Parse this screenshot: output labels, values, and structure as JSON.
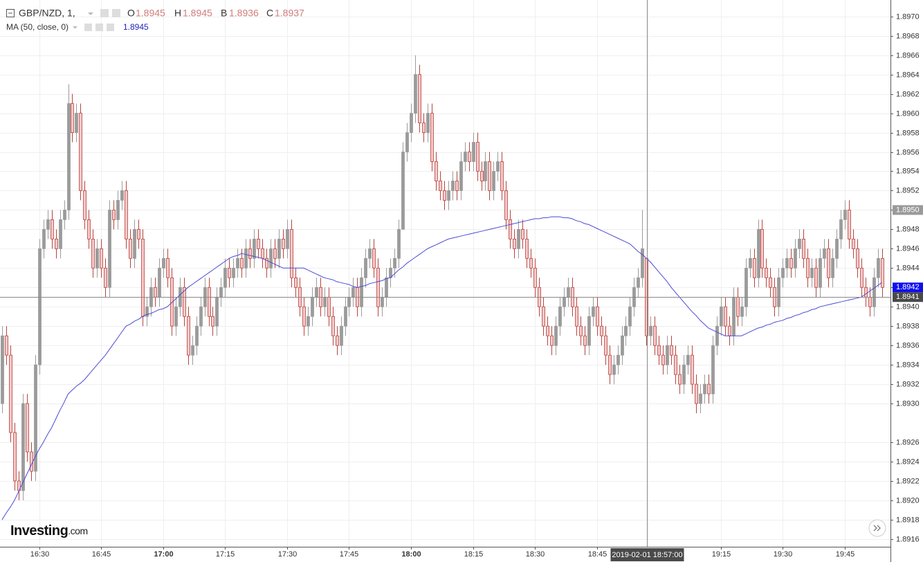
{
  "chart_data": {
    "type": "candlestick",
    "symbol": "GBP/NZD, 1,",
    "ohlc_labels": [
      "O",
      "H",
      "B",
      "C"
    ],
    "logo": "Investing",
    "logo_suffix": ".com",
    "up_color": "#9b9b9b",
    "down_color": "#f6c9c9",
    "down_edge": "#b5433d",
    "grid": true,
    "ylim": [
      1.89152,
      1.89717
    ],
    "yticks": [
      1.8916,
      1.8918,
      {
        "value": 1.892,
        "label": "1.8920"
      },
      1.8922,
      1.8924,
      1.8926,
      {
        "value": 1.893,
        "label": "1.8930"
      },
      1.8932,
      1.8934,
      1.8936,
      1.8938,
      {
        "value": 1.894,
        "label": "1.8940"
      },
      1.8942,
      1.8944,
      1.8946,
      1.8948,
      {
        "value": 1.895,
        "label": "1.8950"
      },
      1.8952,
      1.8954,
      1.8956,
      1.8958,
      {
        "value": 1.896,
        "label": "1.8960"
      },
      1.8962,
      1.8964,
      1.8966,
      1.8968,
      {
        "value": 1.897,
        "label": "1.8970"
      }
    ],
    "price_markers": [
      {
        "value": 1.895,
        "label": "1.8950",
        "color": "#9a9a9a"
      },
      {
        "value": 1.8942,
        "label": "1.8942",
        "color": "#1010ee"
      },
      {
        "value": 1.8941,
        "label": "1.8941",
        "color": "#4a4a4a"
      }
    ],
    "crosshair": {
      "label": "2019-02-01 18:57:00",
      "price": 1.8941
    },
    "categories": [
      null,
      null,
      null,
      null,
      null,
      null,
      null,
      null,
      null,
      "16:30",
      null,
      null,
      null,
      null,
      null,
      null,
      null,
      null,
      null,
      null,
      null,
      null,
      null,
      null,
      "16:45",
      null,
      null,
      null,
      null,
      null,
      null,
      null,
      null,
      null,
      null,
      null,
      null,
      null,
      null,
      "17:00",
      null,
      null,
      null,
      null,
      null,
      null,
      null,
      null,
      null,
      null,
      null,
      null,
      null,
      null,
      "17:15",
      null,
      null,
      null,
      null,
      null,
      null,
      null,
      null,
      null,
      null,
      null,
      null,
      null,
      null,
      "17:30",
      null,
      null,
      null,
      null,
      null,
      null,
      null,
      null,
      null,
      null,
      null,
      null,
      null,
      null,
      "17:45",
      null,
      null,
      null,
      null,
      null,
      null,
      null,
      null,
      null,
      null,
      null,
      null,
      null,
      null,
      "18:00",
      null,
      null,
      null,
      null,
      null,
      null,
      null,
      null,
      null,
      null,
      null,
      null,
      null,
      null,
      "18:15",
      null,
      null,
      null,
      null,
      null,
      null,
      null,
      null,
      null,
      null,
      null,
      null,
      null,
      null,
      "18:30",
      null,
      null,
      null,
      null,
      null,
      null,
      null,
      null,
      null,
      null,
      null,
      null,
      null,
      null,
      "18:45",
      null,
      null,
      null,
      null,
      null,
      null,
      null,
      null,
      null,
      null,
      null,
      null,
      null,
      null,
      null,
      null,
      null,
      null,
      null,
      null,
      null,
      null,
      null,
      null,
      null,
      null,
      null,
      null,
      null,
      "19:15",
      null,
      null,
      null,
      null,
      null,
      null,
      null,
      null,
      null,
      null,
      null,
      null,
      null,
      null,
      "19:30",
      null,
      null,
      null,
      null,
      null,
      null,
      null,
      null,
      null,
      null,
      null,
      null,
      null,
      null,
      "19:45",
      null,
      null,
      null,
      null,
      null,
      null,
      null,
      null,
      null
    ],
    "open": [
      1.893,
      1.8937,
      1.8935,
      1.8927,
      1.8922,
      1.8921,
      1.893,
      1.8925,
      1.8923,
      1.8934,
      1.8946,
      1.8948,
      1.8949,
      1.8947,
      1.8946,
      1.8949,
      1.895,
      1.8961,
      1.8958,
      1.896,
      1.8952,
      1.8949,
      1.8947,
      1.8944,
      1.8946,
      1.8944,
      1.8942,
      1.895,
      1.8949,
      1.8951,
      1.8952,
      1.8947,
      1.8945,
      1.8948,
      1.8947,
      1.8939,
      1.894,
      1.8942,
      1.8941,
      1.8944,
      1.8945,
      1.8943,
      1.8938,
      1.894,
      1.8942,
      1.8939,
      1.8935,
      1.8936,
      1.8938,
      1.894,
      1.8942,
      1.8939,
      1.8938,
      1.8941,
      1.8942,
      1.8944,
      1.8943,
      1.8944,
      1.8945,
      1.8944,
      1.8946,
      1.8945,
      1.8947,
      1.8946,
      1.8945,
      1.8944,
      1.8946,
      1.8945,
      1.8947,
      1.8946,
      1.8948,
      1.8943,
      1.8942,
      1.894,
      1.8938,
      1.8939,
      1.8941,
      1.8942,
      1.894,
      1.8941,
      1.8939,
      1.8937,
      1.8936,
      1.8938,
      1.894,
      1.8941,
      1.8942,
      1.894,
      1.8943,
      1.8945,
      1.8946,
      1.8944,
      1.894,
      1.8941,
      1.8943,
      1.8944,
      1.8945,
      1.8948,
      1.8956,
      1.8958,
      1.896,
      1.8964,
      1.8959,
      1.8958,
      1.896,
      1.8955,
      1.8953,
      1.8952,
      1.8951,
      1.8952,
      1.8953,
      1.8952,
      1.8955,
      1.8956,
      1.8955,
      1.8957,
      1.8954,
      1.8953,
      1.8955,
      1.8952,
      1.8954,
      1.8955,
      1.8952,
      1.8949,
      1.8947,
      1.8946,
      1.8948,
      1.8947,
      1.8945,
      1.8944,
      1.8942,
      1.894,
      1.8938,
      1.8937,
      1.8936,
      1.8938,
      1.894,
      1.8941,
      1.8942,
      1.894,
      1.8938,
      1.8937,
      1.8936,
      1.8939,
      1.894,
      1.8938,
      1.8937,
      1.8935,
      1.8933,
      1.8934,
      1.8935,
      1.8937,
      1.8938,
      1.894,
      1.8942,
      1.8943,
      1.8945,
      1.8937,
      1.8938,
      1.8936,
      1.8935,
      1.8934,
      1.8936,
      1.8935,
      1.8933,
      1.8932,
      1.8934,
      1.8935,
      1.8932,
      1.893,
      1.8931,
      1.8932,
      1.8931,
      1.8936,
      1.8938,
      1.894,
      1.8938,
      1.8937,
      1.8941,
      1.8939,
      1.894,
      1.8944,
      1.8945,
      1.8943,
      1.8948,
      1.8944,
      1.8943,
      1.8942,
      1.894,
      1.8943,
      1.8944,
      1.8945,
      1.8944,
      1.8946,
      1.8947,
      1.8945,
      1.8943,
      1.8944,
      1.8942,
      1.8945,
      1.8946,
      1.8943,
      1.8945,
      1.8947,
      1.8949,
      1.895,
      1.8947,
      1.8946,
      1.8944,
      1.8942,
      1.8941,
      1.894,
      1.8943,
      1.8945
    ],
    "high": [
      1.8938,
      1.8938,
      1.8936,
      1.8928,
      1.8923,
      1.8931,
      1.8931,
      1.8926,
      1.8935,
      1.8947,
      1.8949,
      1.895,
      1.895,
      1.8948,
      1.895,
      1.8951,
      1.8963,
      1.8962,
      1.8961,
      1.8961,
      1.8953,
      1.895,
      1.8948,
      1.8947,
      1.8947,
      1.8945,
      1.8951,
      1.8951,
      1.8952,
      1.8953,
      1.8953,
      1.8948,
      1.8949,
      1.8949,
      1.8948,
      1.8941,
      1.8943,
      1.8943,
      1.8945,
      1.8946,
      1.8946,
      1.8944,
      1.8941,
      1.8943,
      1.8943,
      1.894,
      1.8937,
      1.8939,
      1.8941,
      1.8943,
      1.8943,
      1.894,
      1.8942,
      1.8943,
      1.8945,
      1.8945,
      1.8945,
      1.8946,
      1.8946,
      1.8947,
      1.8947,
      1.8948,
      1.8948,
      1.8947,
      1.8946,
      1.8947,
      1.8947,
      1.8948,
      1.8948,
      1.8949,
      1.8949,
      1.8944,
      1.8943,
      1.8941,
      1.894,
      1.8942,
      1.8943,
      1.8943,
      1.8942,
      1.8942,
      1.894,
      1.8938,
      1.8939,
      1.8941,
      1.8942,
      1.8943,
      1.8943,
      1.8944,
      1.8946,
      1.8947,
      1.8947,
      1.8945,
      1.8942,
      1.8944,
      1.8945,
      1.8946,
      1.8949,
      1.8957,
      1.8959,
      1.8961,
      1.8966,
      1.8965,
      1.896,
      1.8961,
      1.8961,
      1.8956,
      1.8954,
      1.8953,
      1.8953,
      1.8954,
      1.8954,
      1.8956,
      1.8957,
      1.8957,
      1.8958,
      1.8958,
      1.8955,
      1.8956,
      1.8956,
      1.8955,
      1.8956,
      1.8956,
      1.8953,
      1.895,
      1.8948,
      1.8949,
      1.8949,
      1.8948,
      1.8946,
      1.8945,
      1.8943,
      1.8941,
      1.8939,
      1.8938,
      1.8939,
      1.8941,
      1.8942,
      1.8943,
      1.8943,
      1.8941,
      1.8939,
      1.8938,
      1.894,
      1.8941,
      1.8941,
      1.8939,
      1.8938,
      1.8936,
      1.8935,
      1.8936,
      1.8938,
      1.8939,
      1.8941,
      1.8943,
      1.8944,
      1.895,
      1.8945,
      1.8939,
      1.8939,
      1.8937,
      1.8936,
      1.8937,
      1.8937,
      1.8936,
      1.8934,
      1.8935,
      1.8936,
      1.8936,
      1.8933,
      1.8932,
      1.8933,
      1.8933,
      1.8937,
      1.8939,
      1.8941,
      1.8941,
      1.8939,
      1.8942,
      1.8942,
      1.8941,
      1.8945,
      1.8946,
      1.8946,
      1.8949,
      1.8949,
      1.8945,
      1.8944,
      1.8943,
      1.8944,
      1.8945,
      1.8946,
      1.8946,
      1.8947,
      1.8948,
      1.8948,
      1.8946,
      1.8945,
      1.8945,
      1.8946,
      1.8947,
      1.8947,
      1.8946,
      1.8948,
      1.895,
      1.8951,
      1.8951,
      1.8948,
      1.8947,
      1.8945,
      1.8943,
      1.8942,
      1.8944,
      1.8946,
      1.8946
    ],
    "low": [
      1.8929,
      1.8934,
      1.8926,
      1.8921,
      1.892,
      1.892,
      1.8924,
      1.8922,
      1.8922,
      1.8933,
      1.8945,
      1.8947,
      1.8946,
      1.8945,
      1.8945,
      1.8948,
      1.8949,
      1.8957,
      1.8957,
      1.8951,
      1.8948,
      1.8946,
      1.8943,
      1.8943,
      1.8943,
      1.8941,
      1.8941,
      1.8948,
      1.8948,
      1.895,
      1.8946,
      1.8944,
      1.8944,
      1.8946,
      1.8938,
      1.8938,
      1.8939,
      1.894,
      1.894,
      1.8943,
      1.8942,
      1.8937,
      1.8937,
      1.8939,
      1.8938,
      1.8934,
      1.8934,
      1.8935,
      1.8937,
      1.8939,
      1.8938,
      1.8937,
      1.8937,
      1.894,
      1.8941,
      1.8942,
      1.8942,
      1.8943,
      1.8943,
      1.8943,
      1.8944,
      1.8944,
      1.8945,
      1.8944,
      1.8943,
      1.8943,
      1.8944,
      1.8944,
      1.8945,
      1.8945,
      1.8942,
      1.8941,
      1.8939,
      1.8937,
      1.8937,
      1.8938,
      1.894,
      1.8939,
      1.8939,
      1.8938,
      1.8936,
      1.8935,
      1.8935,
      1.8937,
      1.8939,
      1.894,
      1.8939,
      1.8939,
      1.8942,
      1.8944,
      1.8943,
      1.8939,
      1.8939,
      1.894,
      1.8942,
      1.8943,
      1.8944,
      1.8948,
      1.8955,
      1.8957,
      1.8959,
      1.8958,
      1.8957,
      1.8957,
      1.8954,
      1.8952,
      1.8951,
      1.895,
      1.895,
      1.8951,
      1.8951,
      1.8951,
      1.8954,
      1.8954,
      1.8954,
      1.8953,
      1.8952,
      1.8952,
      1.8951,
      1.8951,
      1.8953,
      1.8951,
      1.8948,
      1.8946,
      1.8945,
      1.8945,
      1.8946,
      1.8944,
      1.8943,
      1.8941,
      1.8939,
      1.8937,
      1.8936,
      1.8935,
      1.8935,
      1.8937,
      1.8939,
      1.894,
      1.8939,
      1.8937,
      1.8936,
      1.8935,
      1.8935,
      1.8938,
      1.8937,
      1.8936,
      1.8934,
      1.8932,
      1.8932,
      1.8933,
      1.8934,
      1.8936,
      1.8937,
      1.8939,
      1.8941,
      1.8942,
      1.8936,
      1.8936,
      1.8935,
      1.8934,
      1.8933,
      1.8933,
      1.8934,
      1.8932,
      1.8931,
      1.8931,
      1.8933,
      1.8931,
      1.8929,
      1.8929,
      1.893,
      1.893,
      1.893,
      1.8935,
      1.8937,
      1.8937,
      1.8936,
      1.8936,
      1.8938,
      1.8938,
      1.8939,
      1.8943,
      1.8942,
      1.8942,
      1.8943,
      1.8942,
      1.8941,
      1.8939,
      1.8939,
      1.8942,
      1.8943,
      1.8943,
      1.8943,
      1.8945,
      1.8944,
      1.8942,
      1.8942,
      1.8941,
      1.8941,
      1.8944,
      1.8942,
      1.8942,
      1.8944,
      1.8946,
      1.8948,
      1.8946,
      1.8945,
      1.8943,
      1.8941,
      1.894,
      1.8939,
      1.8939,
      1.8942,
      1.8941
    ],
    "close": [
      1.8937,
      1.8935,
      1.8927,
      1.8922,
      1.8921,
      1.893,
      1.8925,
      1.8923,
      1.8934,
      1.8946,
      1.8948,
      1.8949,
      1.8947,
      1.8946,
      1.8949,
      1.895,
      1.8961,
      1.8958,
      1.896,
      1.8952,
      1.8949,
      1.8947,
      1.8944,
      1.8946,
      1.8944,
      1.8942,
      1.895,
      1.8949,
      1.8951,
      1.8952,
      1.8947,
      1.8945,
      1.8948,
      1.8947,
      1.8939,
      1.894,
      1.8942,
      1.8941,
      1.8944,
      1.8945,
      1.8943,
      1.8938,
      1.894,
      1.8942,
      1.8939,
      1.8935,
      1.8936,
      1.8938,
      1.894,
      1.8942,
      1.8939,
      1.8938,
      1.8941,
      1.8942,
      1.8944,
      1.8943,
      1.8944,
      1.8945,
      1.8944,
      1.8946,
      1.8945,
      1.8947,
      1.8946,
      1.8945,
      1.8944,
      1.8946,
      1.8945,
      1.8947,
      1.8946,
      1.8948,
      1.8943,
      1.8942,
      1.894,
      1.8938,
      1.8939,
      1.8941,
      1.8942,
      1.894,
      1.8941,
      1.8939,
      1.8937,
      1.8936,
      1.8938,
      1.894,
      1.8941,
      1.8942,
      1.894,
      1.8943,
      1.8945,
      1.8946,
      1.8944,
      1.894,
      1.8941,
      1.8943,
      1.8944,
      1.8945,
      1.8948,
      1.8956,
      1.8958,
      1.896,
      1.8964,
      1.8959,
      1.8958,
      1.896,
      1.8955,
      1.8953,
      1.8952,
      1.8951,
      1.8952,
      1.8953,
      1.8952,
      1.8955,
      1.8956,
      1.8955,
      1.8957,
      1.8954,
      1.8953,
      1.8955,
      1.8952,
      1.8954,
      1.8955,
      1.8952,
      1.8949,
      1.8947,
      1.8946,
      1.8948,
      1.8947,
      1.8945,
      1.8944,
      1.8942,
      1.894,
      1.8938,
      1.8937,
      1.8936,
      1.8938,
      1.894,
      1.8941,
      1.8942,
      1.894,
      1.8938,
      1.8937,
      1.8936,
      1.8939,
      1.894,
      1.8938,
      1.8937,
      1.8935,
      1.8933,
      1.8934,
      1.8935,
      1.8937,
      1.8938,
      1.894,
      1.8942,
      1.8943,
      1.8946,
      1.8937,
      1.8938,
      1.8936,
      1.8935,
      1.8934,
      1.8936,
      1.8935,
      1.8933,
      1.8932,
      1.8934,
      1.8935,
      1.8932,
      1.893,
      1.8931,
      1.8932,
      1.8931,
      1.8936,
      1.8938,
      1.894,
      1.8938,
      1.8937,
      1.8941,
      1.8939,
      1.894,
      1.8944,
      1.8945,
      1.8943,
      1.8948,
      1.8944,
      1.8943,
      1.8942,
      1.894,
      1.8943,
      1.8944,
      1.8945,
      1.8944,
      1.8946,
      1.8947,
      1.8945,
      1.8943,
      1.8944,
      1.8942,
      1.8945,
      1.8946,
      1.8943,
      1.8945,
      1.8947,
      1.8949,
      1.895,
      1.8947,
      1.8946,
      1.8944,
      1.8942,
      1.8941,
      1.894,
      1.8943,
      1.8945,
      1.8942
    ],
    "ma": {
      "name": "MA (50, close, 0)",
      "color": "#4a4ad6",
      "values": [
        1.8918,
        1.89187,
        1.89193,
        1.892,
        1.89209,
        1.89218,
        1.89227,
        1.89236,
        1.89245,
        1.89253,
        1.8926,
        1.89268,
        1.89275,
        1.89284,
        1.89293,
        1.89301,
        1.8931,
        1.89314,
        1.89318,
        1.89321,
        1.89325,
        1.8933,
        1.89335,
        1.8934,
        1.89345,
        1.8935,
        1.89356,
        1.89362,
        1.89368,
        1.89374,
        1.8938,
        1.89382,
        1.89385,
        1.89387,
        1.8939,
        1.89392,
        1.89393,
        1.89395,
        1.89397,
        1.89398,
        1.894,
        1.89404,
        1.89408,
        1.89412,
        1.89416,
        1.8942,
        1.89423,
        1.89426,
        1.89429,
        1.89432,
        1.89435,
        1.89438,
        1.89441,
        1.89444,
        1.89447,
        1.8945,
        1.89452,
        1.89453,
        1.89455,
        1.89454,
        1.89453,
        1.89452,
        1.89451,
        1.8945,
        1.89448,
        1.89446,
        1.89444,
        1.89442,
        1.8944,
        1.8944,
        1.8944,
        1.8944,
        1.8944,
        1.8944,
        1.89438,
        1.89436,
        1.89434,
        1.89432,
        1.8943,
        1.89429,
        1.89428,
        1.89426,
        1.89425,
        1.89424,
        1.89423,
        1.89421,
        1.8942,
        1.89421,
        1.89422,
        1.89424,
        1.89425,
        1.89426,
        1.89427,
        1.89429,
        1.8943,
        1.89434,
        1.89438,
        1.89441,
        1.89445,
        1.89448,
        1.89451,
        1.89454,
        1.89457,
        1.8946,
        1.89462,
        1.89464,
        1.89466,
        1.89468,
        1.8947,
        1.89471,
        1.89472,
        1.89473,
        1.89474,
        1.89475,
        1.89476,
        1.89477,
        1.89478,
        1.89479,
        1.8948,
        1.89481,
        1.89482,
        1.89483,
        1.89484,
        1.89485,
        1.89486,
        1.89487,
        1.89488,
        1.89489,
        1.8949,
        1.89491,
        1.89491,
        1.89492,
        1.89492,
        1.89493,
        1.89493,
        1.89493,
        1.89492,
        1.89492,
        1.89491,
        1.89489,
        1.89488,
        1.89486,
        1.89485,
        1.89483,
        1.89481,
        1.89479,
        1.89477,
        1.89475,
        1.89473,
        1.89471,
        1.89469,
        1.89467,
        1.89465,
        1.89461,
        1.89457,
        1.89454,
        1.8945,
        1.89446,
        1.89441,
        1.89436,
        1.89431,
        1.89426,
        1.8942,
        1.89415,
        1.8941,
        1.89405,
        1.894,
        1.89395,
        1.89391,
        1.89386,
        1.89382,
        1.89378,
        1.89376,
        1.89374,
        1.89372,
        1.8937,
        1.8937,
        1.8937,
        1.8937,
        1.8937,
        1.89372,
        1.89374,
        1.89376,
        1.89378,
        1.89379,
        1.89381,
        1.89382,
        1.89384,
        1.89385,
        1.89386,
        1.89388,
        1.89389,
        1.89391,
        1.89392,
        1.89394,
        1.89395,
        1.89397,
        1.89398,
        1.894,
        1.89401,
        1.89402,
        1.89403,
        1.89404,
        1.89405,
        1.89406,
        1.89407,
        1.89408,
        1.89409,
        1.8941,
        1.89413,
        1.89416,
        1.89419,
        1.89422,
        1.89425
      ]
    }
  }
}
